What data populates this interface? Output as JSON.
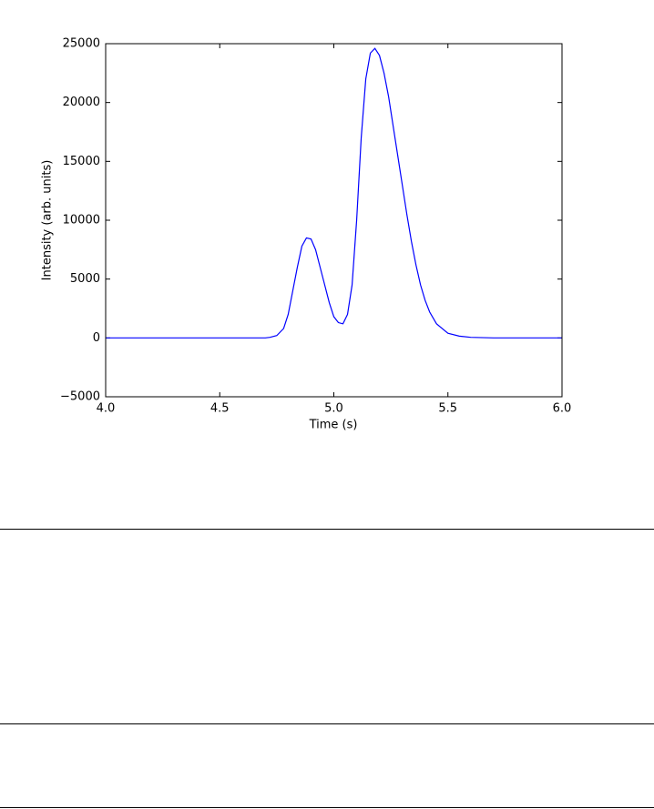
{
  "chart_data": {
    "type": "line",
    "xlabel": "Time (s)",
    "ylabel": "Intensity (arb. units)",
    "x": [
      4.0,
      4.5,
      4.7,
      4.72,
      4.75,
      4.78,
      4.8,
      4.82,
      4.84,
      4.86,
      4.88,
      4.9,
      4.92,
      4.94,
      4.96,
      4.98,
      5.0,
      5.02,
      5.04,
      5.06,
      5.08,
      5.1,
      5.12,
      5.14,
      5.16,
      5.18,
      5.2,
      5.22,
      5.24,
      5.26,
      5.28,
      5.3,
      5.32,
      5.34,
      5.36,
      5.38,
      5.4,
      5.42,
      5.45,
      5.5,
      5.55,
      5.6,
      5.7,
      6.0
    ],
    "series": [
      {
        "color": "#0000ff",
        "values": [
          0,
          0,
          0,
          50,
          200,
          800,
          2000,
          4000,
          6000,
          7800,
          8500,
          8400,
          7500,
          6000,
          4500,
          3000,
          1800,
          1300,
          1200,
          2000,
          4500,
          10000,
          17000,
          22000,
          24200,
          24600,
          24000,
          22500,
          20500,
          18000,
          15500,
          13000,
          10500,
          8200,
          6200,
          4500,
          3200,
          2200,
          1200,
          400,
          150,
          50,
          0,
          0
        ]
      }
    ],
    "xlim": [
      4.0,
      6.0
    ],
    "xticks": [
      {
        "value": 4,
        "label": "4.0"
      },
      {
        "value": 4.5,
        "label": "4.5"
      },
      {
        "value": 5,
        "label": "5.0"
      },
      {
        "value": 5.5,
        "label": "5.5"
      },
      {
        "value": 6,
        "label": "6.0"
      }
    ],
    "ylim": [
      -5000,
      25000
    ],
    "yticks": [
      {
        "value": -5000,
        "label": "−5000"
      },
      0,
      5000,
      10000,
      15000,
      20000,
      25000
    ]
  }
}
